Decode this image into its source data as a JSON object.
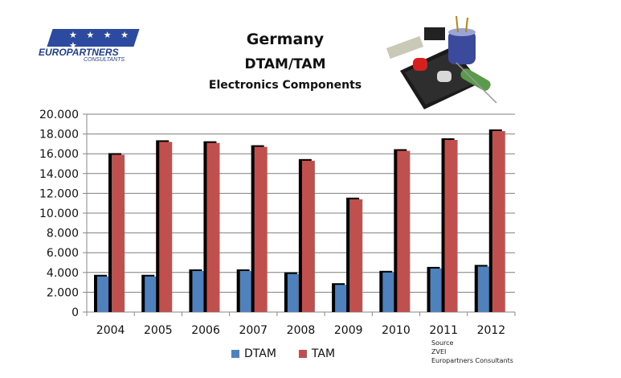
{
  "header": {
    "title": "Germany",
    "subtitle": "DTAM/TAM",
    "subtitle2": "Electronics Components"
  },
  "logo": {
    "brand": "EUROPARTNERS",
    "sub": "CONSULTANTS",
    "stars": "★ ★ ★ ★ ★"
  },
  "colors": {
    "dtam": "#4f81bd",
    "tam": "#c0504d",
    "shadow": "#000000",
    "grid": "#7f7f7f"
  },
  "chart_data": {
    "type": "bar",
    "title": "Germany DTAM/TAM Electronics Components",
    "categories": [
      "2004",
      "2005",
      "2006",
      "2007",
      "2008",
      "2009",
      "2010",
      "2011",
      "2012"
    ],
    "series": [
      {
        "name": "DTAM",
        "values": [
          3600,
          3600,
          4150,
          4150,
          3850,
          2750,
          4000,
          4400,
          4600
        ]
      },
      {
        "name": "TAM",
        "values": [
          15900,
          17200,
          17100,
          16700,
          15300,
          11400,
          16300,
          17400,
          18300
        ]
      }
    ],
    "yticks": [
      "0",
      "2.000",
      "4.000",
      "6.000",
      "8.000",
      "10.000",
      "12.000",
      "14.000",
      "16.000",
      "18.000",
      "20.000"
    ],
    "ylim": [
      0,
      20000
    ],
    "grid": true,
    "legend": "bottom"
  },
  "source": {
    "label": "Source",
    "line1": "ZVEI",
    "line2": "Europartners Consultants"
  }
}
